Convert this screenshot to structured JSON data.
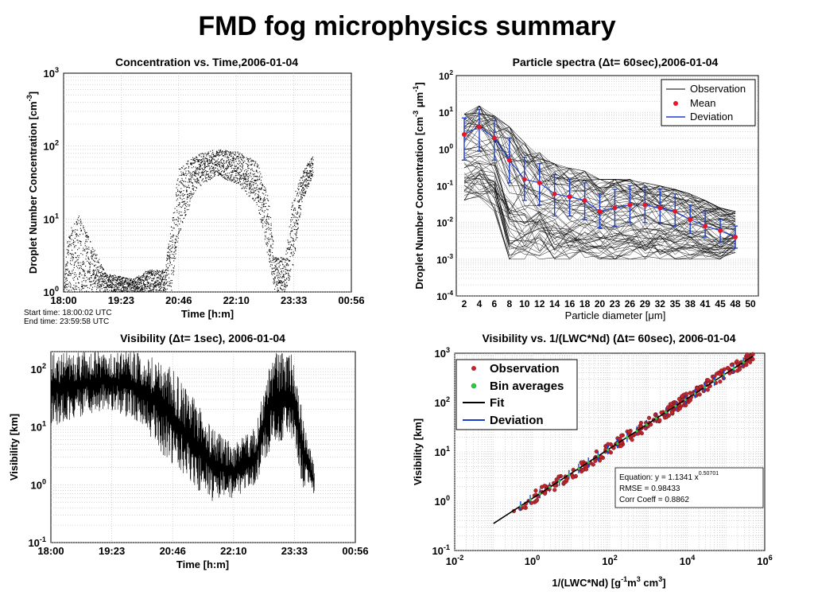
{
  "page": {
    "title": "FMD fog microphysics summary"
  },
  "chart_data": [
    {
      "id": "concentration",
      "type": "scatter",
      "title": "Concentration vs. Time,2006-01-04",
      "xlabel": "Time [h:m]",
      "ylabel": "Droplet Number Concentration [cm-3]",
      "x_ticks": [
        "18:00",
        "19:23",
        "20:46",
        "22:10",
        "23:33",
        "00:56"
      ],
      "y_ticks": [
        "10^0",
        "10^1",
        "10^2",
        "10^3"
      ],
      "y_scale": "log",
      "ylim": [
        1,
        1000
      ],
      "grid": true,
      "notes": [
        "Start time: 18:00:02 UTC",
        "End time: 23:59:58 UTC"
      ],
      "profile": [
        {
          "t": "18:00",
          "lo": 1,
          "hi": 1
        },
        {
          "t": "18:05",
          "lo": 1,
          "hi": 6
        },
        {
          "t": "18:20",
          "lo": 1,
          "hi": 12
        },
        {
          "t": "18:35",
          "lo": 1,
          "hi": 6
        },
        {
          "t": "19:00",
          "lo": 1,
          "hi": 1.8
        },
        {
          "t": "19:40",
          "lo": 1,
          "hi": 1.5
        },
        {
          "t": "20:00",
          "lo": 1,
          "hi": 2
        },
        {
          "t": "20:25",
          "lo": 1,
          "hi": 2
        },
        {
          "t": "20:35",
          "lo": 1,
          "hi": 8
        },
        {
          "t": "20:46",
          "lo": 6,
          "hi": 50
        },
        {
          "t": "21:10",
          "lo": 25,
          "hi": 75
        },
        {
          "t": "21:40",
          "lo": 40,
          "hi": 90
        },
        {
          "t": "22:10",
          "lo": 30,
          "hi": 85
        },
        {
          "t": "22:40",
          "lo": 15,
          "hi": 60
        },
        {
          "t": "22:55",
          "lo": 3,
          "hi": 20
        },
        {
          "t": "23:05",
          "lo": 1,
          "hi": 3
        },
        {
          "t": "23:20",
          "lo": 1,
          "hi": 3
        },
        {
          "t": "23:30",
          "lo": 2,
          "hi": 18
        },
        {
          "t": "23:45",
          "lo": 18,
          "hi": 45
        },
        {
          "t": "24:00",
          "lo": 40,
          "hi": 75
        }
      ]
    },
    {
      "id": "spectra",
      "type": "line",
      "title": "Particle spectra (Δt= 60sec),2006-01-04",
      "xlabel": "Particle diameter [μm]",
      "ylabel": "Droplet Number Concentration [cm-3 μm-1]",
      "x_ticks": [
        "2",
        "4",
        "6",
        "8",
        "10",
        "12",
        "14",
        "16",
        "18",
        "20",
        "23",
        "26",
        "29",
        "32",
        "35",
        "38",
        "41",
        "45",
        "48",
        "50"
      ],
      "y_ticks": [
        "10^-4",
        "10^-3",
        "10^-2",
        "10^-1",
        "10^0",
        "10^1",
        "10^2"
      ],
      "y_scale": "log",
      "ylim": [
        0.0001,
        100
      ],
      "legend": [
        "Observation",
        "Mean",
        "Deviation"
      ],
      "legend_position": "top-right",
      "series": [
        {
          "name": "Mean",
          "x": [
            2,
            4,
            6,
            8,
            10,
            12,
            14,
            16,
            18,
            20,
            23,
            26,
            29,
            32,
            35,
            38,
            41,
            45,
            48
          ],
          "values": [
            2.5,
            4,
            2,
            0.5,
            0.15,
            0.12,
            0.06,
            0.05,
            0.04,
            0.02,
            0.025,
            0.03,
            0.03,
            0.025,
            0.02,
            0.012,
            0.008,
            0.006,
            0.004
          ]
        },
        {
          "name": "Deviation",
          "x": [
            2,
            4,
            6,
            8,
            10,
            12,
            14,
            16,
            18,
            20,
            23,
            26,
            29,
            32,
            35,
            38,
            41,
            45,
            48
          ],
          "low": [
            0.5,
            0.9,
            0.5,
            0.12,
            0.04,
            0.03,
            0.015,
            0.015,
            0.012,
            0.007,
            0.008,
            0.01,
            0.01,
            0.01,
            0.008,
            0.005,
            0.004,
            0.003,
            0.002
          ],
          "high": [
            7,
            12,
            6,
            2,
            0.6,
            0.4,
            0.2,
            0.15,
            0.12,
            0.06,
            0.08,
            0.1,
            0.09,
            0.08,
            0.06,
            0.03,
            0.02,
            0.012,
            0.008
          ]
        },
        {
          "name": "Observation",
          "x": [
            2,
            4,
            6,
            8,
            10,
            12,
            14,
            16,
            18,
            20,
            23,
            26,
            29,
            32,
            35,
            38,
            41,
            45,
            48
          ],
          "upper": [
            9,
            15,
            8,
            4,
            1.5,
            0.8,
            0.4,
            0.3,
            0.25,
            0.15,
            0.15,
            0.15,
            0.12,
            0.1,
            0.08,
            0.06,
            0.04,
            0.025,
            0.02
          ],
          "lower": [
            0.04,
            0.05,
            0.02,
            0.001,
            0.001,
            0.001,
            0.001,
            0.001,
            0.001,
            0.001,
            0.001,
            0.001,
            0.001,
            0.001,
            0.001,
            0.001,
            0.001,
            0.001,
            0.0015
          ]
        }
      ]
    },
    {
      "id": "visibility",
      "type": "line",
      "title": "Visibility (Δt= 1sec), 2006-01-04",
      "xlabel": "Time [h:m]",
      "ylabel": "Visibility [km]",
      "x_ticks": [
        "18:00",
        "19:23",
        "20:46",
        "22:10",
        "23:33",
        "00:56"
      ],
      "y_ticks": [
        "10^-1",
        "10^0",
        "10^1",
        "10^2"
      ],
      "y_scale": "log",
      "ylim": [
        0.1,
        200
      ],
      "grid": true,
      "envelope": [
        {
          "t": "18:00",
          "lo": 10,
          "hi": 200
        },
        {
          "t": "18:40",
          "lo": 15,
          "hi": 200
        },
        {
          "t": "19:20",
          "lo": 20,
          "hi": 200
        },
        {
          "t": "20:00",
          "lo": 12,
          "hi": 200
        },
        {
          "t": "20:35",
          "lo": 3,
          "hi": 150
        },
        {
          "t": "20:46",
          "lo": 2,
          "hi": 100
        },
        {
          "t": "21:10",
          "lo": 1,
          "hi": 40
        },
        {
          "t": "21:40",
          "lo": 0.5,
          "hi": 10
        },
        {
          "t": "22:10",
          "lo": 0.6,
          "hi": 5
        },
        {
          "t": "22:40",
          "lo": 1,
          "hi": 10
        },
        {
          "t": "22:55",
          "lo": 3,
          "hi": 80
        },
        {
          "t": "23:05",
          "lo": 5,
          "hi": 200
        },
        {
          "t": "23:30",
          "lo": 5,
          "hi": 200
        },
        {
          "t": "23:45",
          "lo": 0.8,
          "hi": 15
        },
        {
          "t": "24:00",
          "lo": 0.7,
          "hi": 2
        }
      ]
    },
    {
      "id": "vis_vs_lwc",
      "type": "scatter",
      "title": "Visibility vs. 1/(LWC*Nd) (Δt= 60sec), 2006-01-04",
      "xlabel": "1/(LWC*Nd) [g-1m3 cm3]",
      "ylabel": "Visibility [km]",
      "x_ticks": [
        "10^-2",
        "10^0",
        "10^2",
        "10^4",
        "10^6"
      ],
      "y_ticks": [
        "10^-1",
        "10^0",
        "10^1",
        "10^2",
        "10^3"
      ],
      "x_scale": "log",
      "y_scale": "log",
      "xlim": [
        0.01,
        1000000
      ],
      "ylim": [
        0.1,
        1000
      ],
      "legend": [
        "Observation",
        "Bin averages",
        "Fit",
        "Deviation"
      ],
      "legend_position": "top-left",
      "fit": {
        "a": 1.1341,
        "b": 0.50701,
        "x_range": [
          0.1,
          500000
        ]
      },
      "stats": [
        {
          "prefix": "Equation: y = 1.1341 x",
          "sup": "0.50701"
        },
        {
          "prefix": "RMSE = 0.98433",
          "sup": ""
        },
        {
          "prefix": "Corr Coeff = 0.8862",
          "sup": ""
        }
      ],
      "observation_range": [
        0.3,
        500000
      ],
      "observation_scatter_decades": 0.12
    }
  ],
  "colors": {
    "observation": "#c0272d",
    "mean": "#e8162a",
    "deviation": "#1d3fcf",
    "bin": "#2ecc40",
    "grid": "#bbbbbb"
  }
}
